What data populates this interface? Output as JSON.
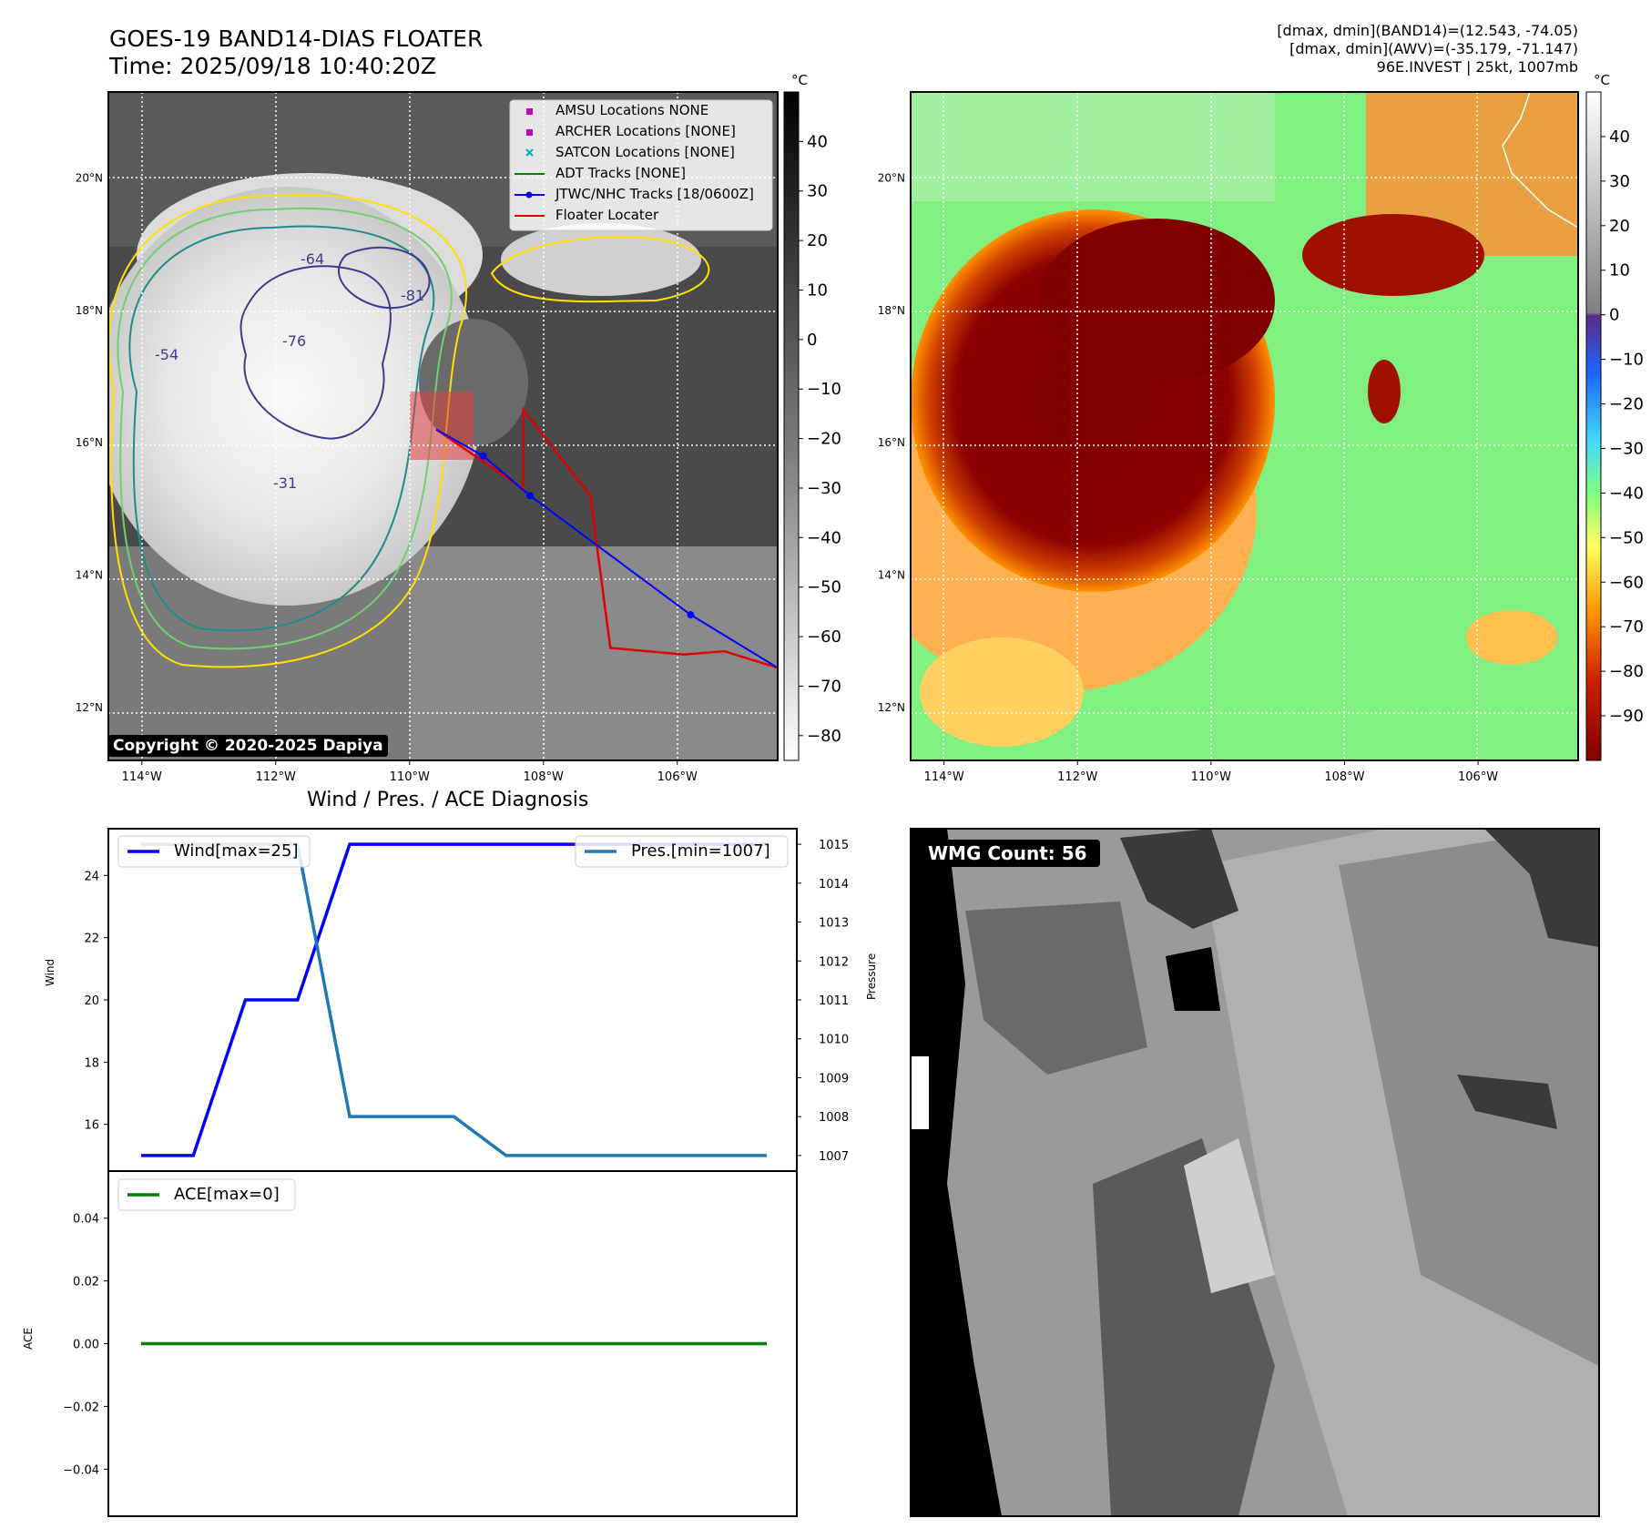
{
  "header": {
    "title_line1": "GOES-19 BAND14-DIAS FLOATER",
    "title_line2": "Time: 2025/09/18 10:40:20Z",
    "stats_line1": "[dmax, dmin](BAND14)=(12.543, -74.05)",
    "stats_line2": "[dmax, dmin](AWV)=(-35.179, -71.147)",
    "stats_line3": "96E.INVEST | 25kt, 1007mb"
  },
  "copyright": "Copyright © 2020-2025 Dapiya",
  "colors": {
    "wind": "#0000ff",
    "pressure": "#1f77b4",
    "ace": "#008000",
    "jtwc_track": "#0000ff",
    "floater": "#e00000",
    "adt": "#008000",
    "amsu": "#c000c0",
    "archer": "#c000c0",
    "satcon": "#00b0b0"
  },
  "chart_data": [
    {
      "type": "heatmap",
      "name": "BAND14 IR map",
      "unit_label": "°C",
      "colorbar_ticks": [
        40,
        30,
        20,
        10,
        0,
        -10,
        -20,
        -30,
        -40,
        -50,
        -60,
        -70,
        -80
      ],
      "colorbar_range": [
        -85,
        50
      ],
      "lat_ticks": [
        "20°N",
        "18°N",
        "16°N",
        "14°N",
        "12°N"
      ],
      "lon_ticks": [
        "114°W",
        "112°W",
        "110°W",
        "108°W",
        "106°W"
      ],
      "lat_range": [
        11.2,
        21.3
      ],
      "lon_range": [
        -114.5,
        -104.5
      ],
      "contour_labels": [
        "-31",
        "-54",
        "-64",
        "-76",
        "-81"
      ],
      "legend": [
        {
          "label": "AMSU Locations NONE",
          "marker": "square",
          "color": "#c000c0"
        },
        {
          "label": "ARCHER Locations [NONE]",
          "marker": "square",
          "color": "#c000c0"
        },
        {
          "label": "SATCON Locations [NONE]",
          "marker": "x",
          "color": "#00b0b0"
        },
        {
          "label": "ADT Tracks [NONE]",
          "marker": "line",
          "color": "#008000"
        },
        {
          "label": "JTWC/NHC Tracks [18/0600Z]",
          "marker": "line-dot",
          "color": "#0000ff"
        },
        {
          "label": "Floater Locater",
          "marker": "line",
          "color": "#e00000"
        }
      ],
      "jtwc_track": [
        {
          "lon": -109.6,
          "lat": 16.2
        },
        {
          "lon": -108.9,
          "lat": 15.8
        },
        {
          "lon": -108.2,
          "lat": 15.2
        },
        {
          "lon": -105.8,
          "lat": 13.4
        },
        {
          "lon": -104.5,
          "lat": 12.6
        }
      ],
      "floater_track": [
        {
          "lon": -104.5,
          "lat": 12.6
        },
        {
          "lon": -105.3,
          "lat": 12.85
        },
        {
          "lon": -105.9,
          "lat": 12.8
        },
        {
          "lon": -107.0,
          "lat": 12.9
        },
        {
          "lon": -107.3,
          "lat": 15.2
        },
        {
          "lon": -108.3,
          "lat": 16.5
        },
        {
          "lon": -108.3,
          "lat": 15.3
        },
        {
          "lon": -109.6,
          "lat": 16.2
        }
      ]
    },
    {
      "type": "heatmap",
      "name": "AWV map",
      "unit_label": "°C",
      "colorbar_ticks": [
        40,
        30,
        20,
        10,
        0,
        -10,
        -20,
        -30,
        -40,
        -50,
        -60,
        -70,
        -80,
        -90
      ],
      "colorbar_range": [
        -100,
        50
      ],
      "lat_ticks": [
        "20°N",
        "18°N",
        "16°N",
        "14°N",
        "12°N"
      ],
      "lon_ticks": [
        "114°W",
        "112°W",
        "110°W",
        "108°W",
        "106°W"
      ]
    },
    {
      "type": "line",
      "title": "Wind / Pres. / ACE Diagnosis",
      "ylabel_left": "Wind",
      "ylabel_right": "Pressure",
      "x": [
        0,
        1,
        2,
        3,
        4,
        5,
        6,
        7,
        8,
        9,
        10,
        11,
        12
      ],
      "y_left_ticks": [
        16,
        18,
        20,
        22,
        24
      ],
      "y_left_range": [
        14.5,
        25.5
      ],
      "y_right_ticks": [
        1007,
        1008,
        1009,
        1010,
        1011,
        1012,
        1013,
        1014,
        1015
      ],
      "y_right_range": [
        1006.6,
        1015.4
      ],
      "series": [
        {
          "name": "Wind[max=25]",
          "axis": "left",
          "values": [
            15,
            15,
            20,
            20,
            25,
            25,
            25,
            25,
            25,
            25,
            25,
            25,
            25
          ]
        },
        {
          "name": "Pres.[min=1007]",
          "axis": "right",
          "values": [
            1015,
            1015,
            1015,
            1015,
            1008,
            1008,
            1008,
            1007,
            1007,
            1007,
            1007,
            1007,
            1007
          ]
        }
      ]
    },
    {
      "type": "line",
      "ylabel": "ACE",
      "x": [
        0,
        1,
        2,
        3,
        4,
        5,
        6,
        7,
        8,
        9,
        10,
        11,
        12
      ],
      "y_ticks": [
        "0.04",
        "0.02",
        "0.00",
        "−0.02",
        "−0.04"
      ],
      "y_range": [
        -0.055,
        0.055
      ],
      "series": [
        {
          "name": "ACE[max=0]",
          "values": [
            0,
            0,
            0,
            0,
            0,
            0,
            0,
            0,
            0,
            0,
            0,
            0,
            0
          ]
        }
      ]
    },
    {
      "type": "heatmap",
      "name": "WMG grayscale",
      "label": "WMG Count: 56"
    }
  ]
}
